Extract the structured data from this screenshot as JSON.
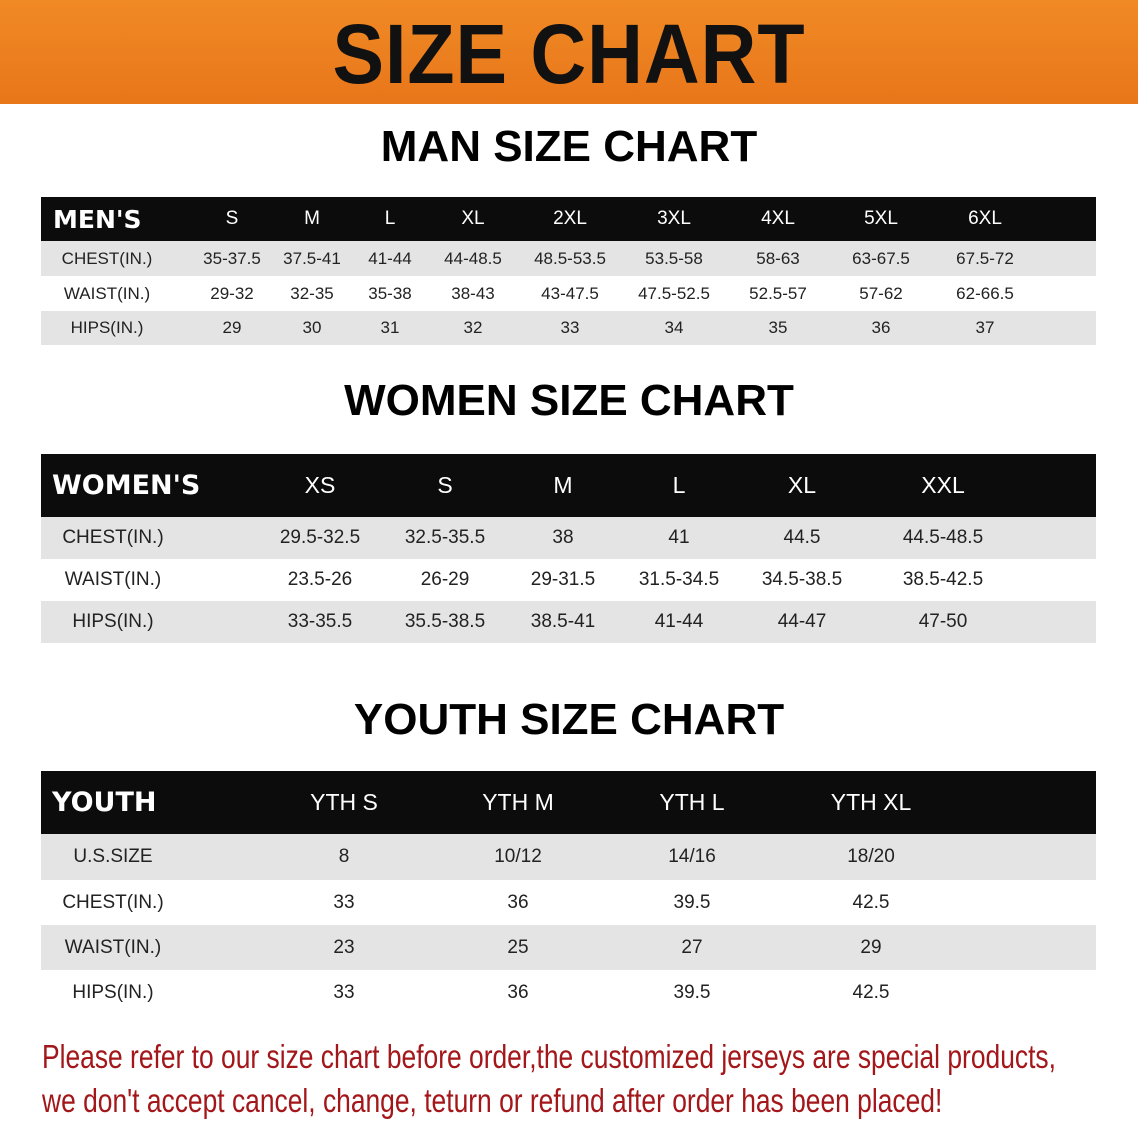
{
  "banner": {
    "title": "SIZE CHART",
    "color": "#ec7d1f"
  },
  "sections": {
    "men_title": "MAN SIZE CHART",
    "women_title": "WOMEN SIZE CHART",
    "youth_title": "YOUTH SIZE CHART"
  },
  "chart_data": [
    {
      "type": "table",
      "id": "men",
      "columns": [
        "MEN'S",
        "S",
        "M",
        "L",
        "XL",
        "2XL",
        "3XL",
        "4XL",
        "5XL",
        "6XL"
      ],
      "rows": [
        [
          "CHEST(IN.)",
          "35-37.5",
          "37.5-41",
          "41-44",
          "44-48.5",
          "48.5-53.5",
          "53.5-58",
          "58-63",
          "63-67.5",
          "67.5-72"
        ],
        [
          "WAIST(IN.)",
          "29-32",
          "32-35",
          "35-38",
          "38-43",
          "43-47.5",
          "47.5-52.5",
          "52.5-57",
          "57-62",
          "62-66.5"
        ],
        [
          "HIPS(IN.)",
          "29",
          "30",
          "31",
          "32",
          "33",
          "34",
          "35",
          "36",
          "37"
        ]
      ]
    },
    {
      "type": "table",
      "id": "women",
      "columns": [
        "WOMEN'S",
        "XS",
        "S",
        "M",
        "L",
        "XL",
        "XXL"
      ],
      "rows": [
        [
          "CHEST(IN.)",
          "29.5-32.5",
          "32.5-35.5",
          "38",
          "41",
          "44.5",
          "44.5-48.5"
        ],
        [
          "WAIST(IN.)",
          "23.5-26",
          "26-29",
          "29-31.5",
          "31.5-34.5",
          "34.5-38.5",
          "38.5-42.5"
        ],
        [
          "HIPS(IN.)",
          "33-35.5",
          "35.5-38.5",
          "38.5-41",
          "41-44",
          "44-47",
          "47-50"
        ]
      ]
    },
    {
      "type": "table",
      "id": "youth",
      "columns": [
        "YOUTH",
        "YTH S",
        "YTH M",
        "YTH L",
        "YTH XL"
      ],
      "rows": [
        [
          "U.S.SIZE",
          "8",
          "10/12",
          "14/16",
          "18/20"
        ],
        [
          "CHEST(IN.)",
          "33",
          "36",
          "39.5",
          "42.5"
        ],
        [
          "WAIST(IN.)",
          "23",
          "25",
          "27",
          "29"
        ],
        [
          "HIPS(IN.)",
          "33",
          "36",
          "39.5",
          "42.5"
        ]
      ]
    }
  ],
  "footer": {
    "line1": "Please refer to our size chart before order,the customized jerseys are special products,",
    "line2": "we don't accept cancel, change, teturn or refund after order has been placed!",
    "color": "#a3161a"
  }
}
